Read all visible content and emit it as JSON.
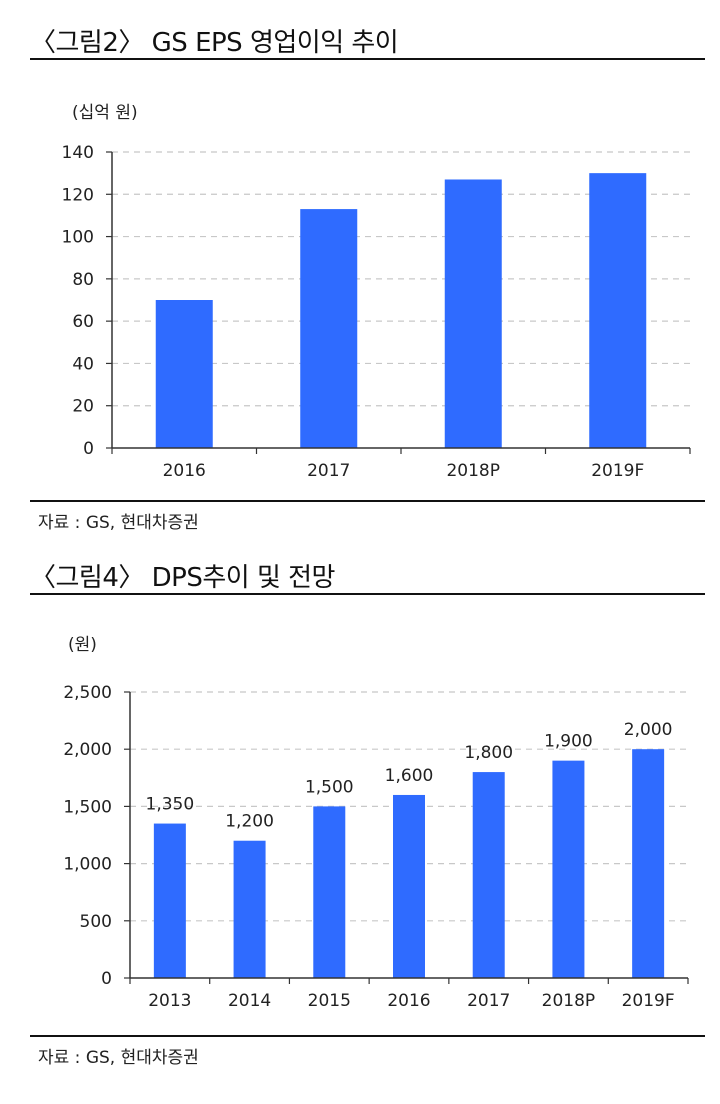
{
  "figure1": {
    "title": "〈그림2〉 GS  EPS  영업이익  추이",
    "unit": "(십억 원)",
    "source": "자료 : GS, 현대차증권",
    "chart_data": {
      "type": "bar",
      "categories": [
        "2016",
        "2017",
        "2018P",
        "2019F"
      ],
      "values": [
        70,
        113,
        127,
        130
      ],
      "yticks": [
        "0",
        "20",
        "40",
        "60",
        "80",
        "100",
        "120",
        "140"
      ],
      "ylim": [
        0,
        140
      ],
      "grid": true,
      "bar_color": "#2f6bff"
    }
  },
  "figure2": {
    "title": "〈그림4〉 DPS추이 및 전망",
    "unit": "(원)",
    "source": "자료 : GS, 현대차증권",
    "chart_data": {
      "type": "bar",
      "categories": [
        "2013",
        "2014",
        "2015",
        "2016",
        "2017",
        "2018P",
        "2019F"
      ],
      "values": [
        1350,
        1200,
        1500,
        1600,
        1800,
        1900,
        2000
      ],
      "data_labels": [
        "1,350",
        "1,200",
        "1,500",
        "1,600",
        "1,800",
        "1,900",
        "2,000"
      ],
      "yticks": [
        "0",
        "500",
        "1,000",
        "1,500",
        "2,000",
        "2,500"
      ],
      "ylim": [
        0,
        2500
      ],
      "grid": true,
      "bar_color": "#2f6bff"
    }
  }
}
